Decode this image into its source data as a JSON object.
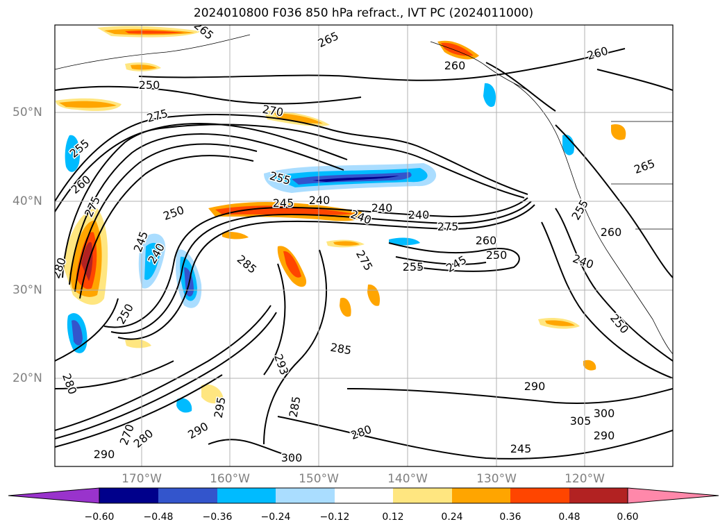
{
  "title": "2024010800 F036 850 hPa refract., IVT PC (2024011000)",
  "map": {
    "longitude_labels": [
      "170°W",
      "160°W",
      "150°W",
      "140°W",
      "130°W",
      "120°W"
    ],
    "latitude_labels": [
      "50°N",
      "40°N",
      "30°N",
      "20°N"
    ],
    "contour_labels": [
      "265",
      "275",
      "270",
      "255",
      "260",
      "275",
      "245",
      "240",
      "250",
      "255",
      "245",
      "240",
      "240",
      "240",
      "240",
      "275",
      "260",
      "250",
      "255",
      "245",
      "285",
      "275",
      "280",
      "250",
      "285",
      "293",
      "285",
      "280",
      "290",
      "295",
      "270",
      "280",
      "290",
      "300",
      "280",
      "290",
      "300",
      "305",
      "290",
      "245",
      "240",
      "250",
      "260",
      "265",
      "260",
      "260",
      "265",
      "255",
      "250"
    ]
  },
  "colorbar": {
    "ticks": [
      "−0.60",
      "−0.48",
      "−0.36",
      "−0.24",
      "−0.12",
      "0.12",
      "0.24",
      "0.36",
      "0.48",
      "0.60"
    ],
    "colors": {
      "under": "#9933cc",
      "c1": "#00008b",
      "c2": "#3355cc",
      "c3": "#00bbff",
      "c4": "#aaddff",
      "c5": "#ffffff",
      "c6": "#ffe680",
      "c7": "#ffa500",
      "c8": "#ff4500",
      "c9": "#b22222",
      "over": "#ff88aa"
    }
  }
}
